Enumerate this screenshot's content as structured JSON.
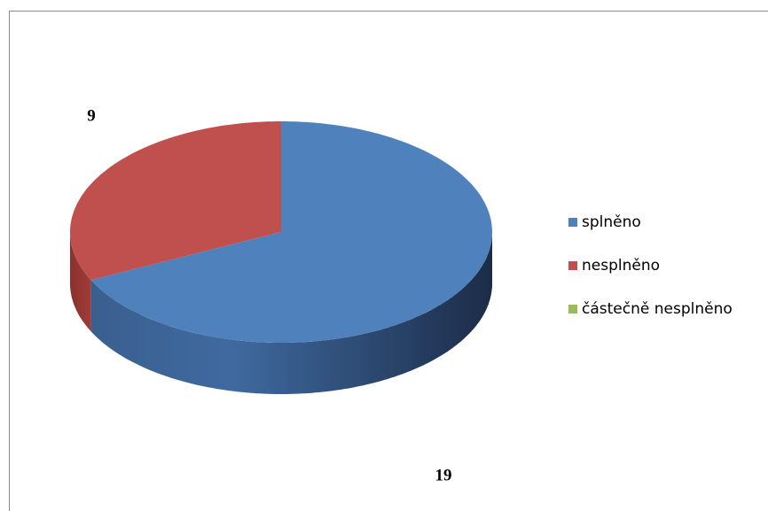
{
  "chart_data": {
    "type": "pie",
    "categories": [
      "splněno",
      "nesplněno",
      "částečně nesplněno"
    ],
    "values": [
      19,
      9,
      0
    ],
    "colors": [
      "#4f81bd",
      "#c0504d",
      "#9bbb59"
    ],
    "legend": "right"
  }
}
